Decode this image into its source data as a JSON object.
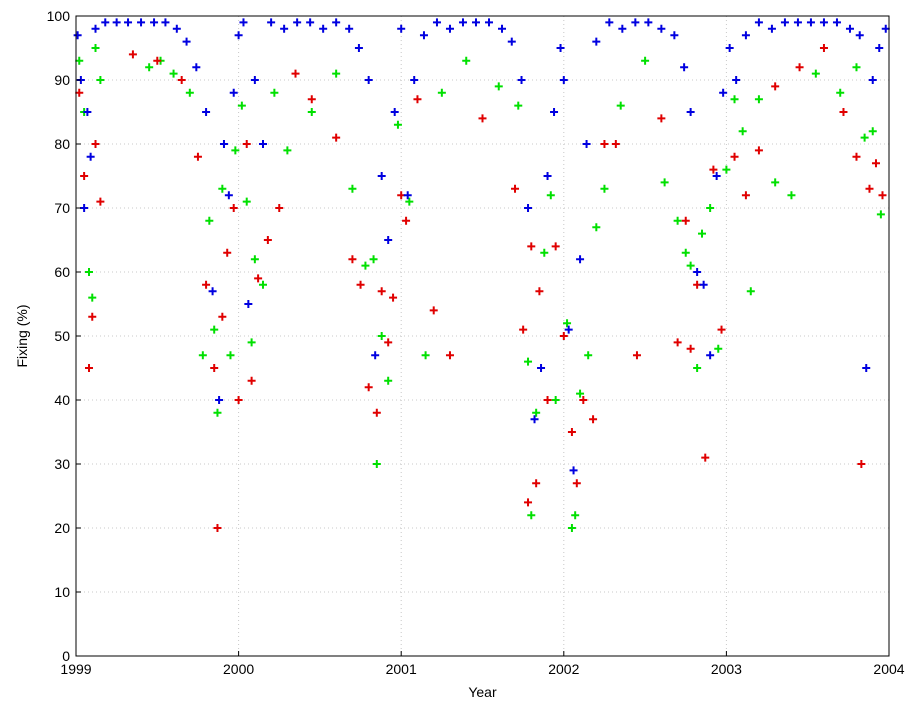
{
  "chart_data": {
    "type": "scatter",
    "xlabel": "Year",
    "ylabel": "Fixing (%)",
    "xlim": [
      1999,
      2004
    ],
    "ylim": [
      0,
      100
    ],
    "x_ticks": [
      "1999",
      "2000",
      "2001",
      "2002",
      "2003",
      "2004"
    ],
    "y_ticks": [
      "0",
      "10",
      "20",
      "30",
      "40",
      "50",
      "60",
      "70",
      "80",
      "90",
      "100"
    ],
    "grid": true,
    "marker": "+",
    "series": [
      {
        "color": "#00e000",
        "x": [
          1999.02,
          1999.05,
          1999.08,
          1999.1,
          1999.12,
          1999.15,
          1999.45,
          1999.52,
          1999.6,
          1999.7,
          1999.78,
          1999.82,
          1999.85,
          1999.87,
          1999.9,
          1999.95,
          1999.98,
          2000.02,
          2000.05,
          2000.08,
          2000.1,
          2000.15,
          2000.22,
          2000.3,
          2000.45,
          2000.6,
          2000.7,
          2000.78,
          2000.83,
          2000.85,
          2000.88,
          2000.92,
          2000.98,
          2001.05,
          2001.15,
          2001.25,
          2001.4,
          2001.6,
          2001.72,
          2001.78,
          2001.8,
          2001.83,
          2001.88,
          2001.92,
          2001.95,
          2002.02,
          2002.05,
          2002.07,
          2002.1,
          2002.15,
          2002.2,
          2002.25,
          2002.35,
          2002.5,
          2002.62,
          2002.7,
          2002.75,
          2002.78,
          2002.82,
          2002.85,
          2002.9,
          2002.95,
          2003.0,
          2003.05,
          2003.1,
          2003.15,
          2003.2,
          2003.3,
          2003.4,
          2003.55,
          2003.7,
          2003.8,
          2003.85,
          2003.9,
          2003.95
        ],
        "y": [
          93,
          85,
          60,
          56,
          95,
          90,
          92,
          93,
          91,
          88,
          47,
          68,
          51,
          38,
          73,
          47,
          79,
          86,
          71,
          49,
          62,
          58,
          88,
          79,
          85,
          91,
          73,
          61,
          62,
          30,
          50,
          43,
          83,
          71,
          47,
          88,
          93,
          89,
          86,
          46,
          22,
          38,
          63,
          72,
          40,
          52,
          20,
          22,
          41,
          47,
          67,
          73,
          86,
          93,
          74,
          68,
          63,
          61,
          45,
          66,
          70,
          48,
          76,
          87,
          82,
          57,
          87,
          74,
          72,
          91,
          88,
          92,
          81,
          82,
          69
        ]
      },
      {
        "color": "#e00000",
        "x": [
          1999.02,
          1999.05,
          1999.08,
          1999.1,
          1999.12,
          1999.15,
          1999.35,
          1999.5,
          1999.65,
          1999.75,
          1999.8,
          1999.85,
          1999.87,
          1999.9,
          1999.93,
          1999.97,
          2000.0,
          2000.05,
          2000.08,
          2000.12,
          2000.18,
          2000.25,
          2000.35,
          2000.45,
          2000.6,
          2000.7,
          2000.75,
          2000.8,
          2000.85,
          2000.88,
          2000.92,
          2000.95,
          2001.0,
          2001.03,
          2001.1,
          2001.2,
          2001.3,
          2001.5,
          2001.7,
          2001.75,
          2001.78,
          2001.8,
          2001.83,
          2001.85,
          2001.9,
          2001.95,
          2002.0,
          2002.05,
          2002.08,
          2002.12,
          2002.18,
          2002.25,
          2002.32,
          2002.45,
          2002.6,
          2002.7,
          2002.75,
          2002.78,
          2002.82,
          2002.87,
          2002.92,
          2002.97,
          2003.05,
          2003.12,
          2003.2,
          2003.3,
          2003.45,
          2003.6,
          2003.72,
          2003.8,
          2003.83,
          2003.88,
          2003.92,
          2003.96
        ],
        "y": [
          88,
          75,
          45,
          53,
          80,
          71,
          94,
          93,
          90,
          78,
          58,
          45,
          20,
          53,
          63,
          70,
          40,
          80,
          43,
          59,
          65,
          70,
          91,
          87,
          81,
          62,
          58,
          42,
          38,
          57,
          49,
          56,
          72,
          68,
          87,
          54,
          47,
          84,
          73,
          51,
          24,
          64,
          27,
          57,
          40,
          64,
          50,
          35,
          27,
          40,
          37,
          80,
          80,
          47,
          84,
          49,
          68,
          48,
          58,
          31,
          76,
          51,
          78,
          72,
          79,
          89,
          92,
          95,
          85,
          78,
          30,
          73,
          77,
          72
        ]
      },
      {
        "color": "#0000e0",
        "x": [
          1999.01,
          1999.03,
          1999.05,
          1999.07,
          1999.09,
          1999.12,
          1999.18,
          1999.25,
          1999.32,
          1999.4,
          1999.48,
          1999.55,
          1999.62,
          1999.68,
          1999.74,
          1999.8,
          1999.84,
          1999.88,
          1999.91,
          1999.94,
          1999.97,
          2000.0,
          2000.03,
          2000.06,
          2000.1,
          2000.15,
          2000.2,
          2000.28,
          2000.36,
          2000.44,
          2000.52,
          2000.6,
          2000.68,
          2000.74,
          2000.8,
          2000.84,
          2000.88,
          2000.92,
          2000.96,
          2001.0,
          2001.04,
          2001.08,
          2001.14,
          2001.22,
          2001.3,
          2001.38,
          2001.46,
          2001.54,
          2001.62,
          2001.68,
          2001.74,
          2001.78,
          2001.82,
          2001.86,
          2001.9,
          2001.94,
          2001.98,
          2002.0,
          2002.03,
          2002.06,
          2002.1,
          2002.14,
          2002.2,
          2002.28,
          2002.36,
          2002.44,
          2002.52,
          2002.6,
          2002.68,
          2002.74,
          2002.78,
          2002.82,
          2002.86,
          2002.9,
          2002.94,
          2002.98,
          2003.02,
          2003.06,
          2003.12,
          2003.2,
          2003.28,
          2003.36,
          2003.44,
          2003.52,
          2003.6,
          2003.68,
          2003.76,
          2003.82,
          2003.86,
          2003.9,
          2003.94,
          2003.98
        ],
        "y": [
          97,
          90,
          70,
          85,
          78,
          98,
          99,
          99,
          99,
          99,
          99,
          99,
          98,
          96,
          92,
          85,
          57,
          40,
          80,
          72,
          88,
          97,
          99,
          55,
          90,
          80,
          99,
          98,
          99,
          99,
          98,
          99,
          98,
          95,
          90,
          47,
          75,
          65,
          85,
          98,
          72,
          90,
          97,
          99,
          98,
          99,
          99,
          99,
          98,
          96,
          90,
          70,
          37,
          45,
          75,
          85,
          95,
          90,
          51,
          29,
          62,
          80,
          96,
          99,
          98,
          99,
          99,
          98,
          97,
          92,
          85,
          60,
          58,
          47,
          75,
          88,
          95,
          90,
          97,
          99,
          98,
          99,
          99,
          99,
          99,
          99,
          98,
          97,
          45,
          90,
          95,
          98
        ]
      }
    ]
  }
}
